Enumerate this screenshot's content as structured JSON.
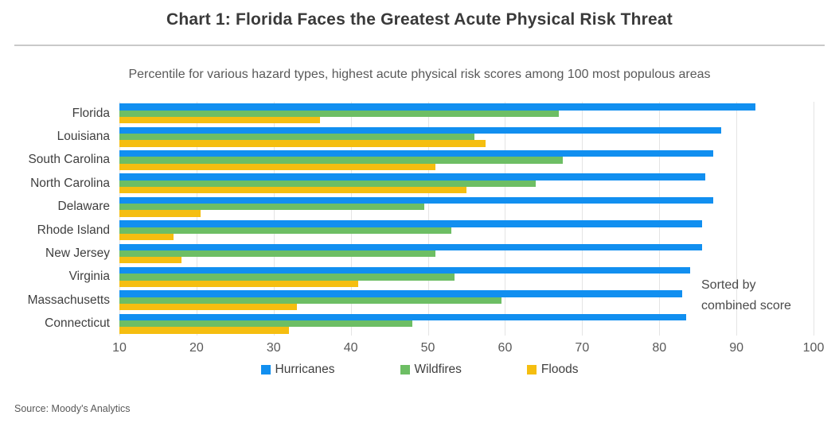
{
  "title": "Chart 1: Florida Faces the Greatest Acute Physical Risk Threat",
  "subtitle": "Percentile for various hazard types, highest acute physical risk scores among 100 most populous areas",
  "annotation": {
    "line1": "Sorted by",
    "line2": "combined score"
  },
  "source": "Source: Moody's Analytics",
  "colors": {
    "hurricanes": "#118ff0",
    "wildfires": "#6dbe64",
    "floods": "#f5be10",
    "gridline": "#e4e4e4",
    "title_text": "#3a3a3a",
    "axis_text": "#595959"
  },
  "chart_data": {
    "type": "bar",
    "orientation": "horizontal",
    "title": "Chart 1: Florida Faces the Greatest Acute Physical Risk Threat",
    "subtitle": "Percentile for various hazard types, highest acute physical risk scores among 100 most populous areas",
    "xlabel": "",
    "ylabel": "",
    "xlim": [
      10,
      100
    ],
    "xticks": [
      10,
      20,
      30,
      40,
      50,
      60,
      70,
      80,
      90,
      100
    ],
    "grid": true,
    "legend_position": "bottom",
    "sort_note": "Sorted by combined score",
    "categories": [
      "Florida",
      "Louisiana",
      "South Carolina",
      "North Carolina",
      "Delaware",
      "Rhode Island",
      "New Jersey",
      "Virginia",
      "Massachusetts",
      "Connecticut"
    ],
    "series": [
      {
        "name": "Hurricanes",
        "color": "#118ff0",
        "values": [
          92.5,
          88,
          87,
          86,
          87,
          85.5,
          85.5,
          84,
          83,
          83.5
        ]
      },
      {
        "name": "Wildfires",
        "color": "#6dbe64",
        "values": [
          67,
          56,
          67.5,
          64,
          49.5,
          53,
          51,
          53.5,
          59.5,
          48
        ]
      },
      {
        "name": "Floods",
        "color": "#f5be10",
        "values": [
          36,
          57.5,
          51,
          55,
          20.5,
          17,
          18,
          41,
          33,
          32
        ]
      }
    ]
  }
}
